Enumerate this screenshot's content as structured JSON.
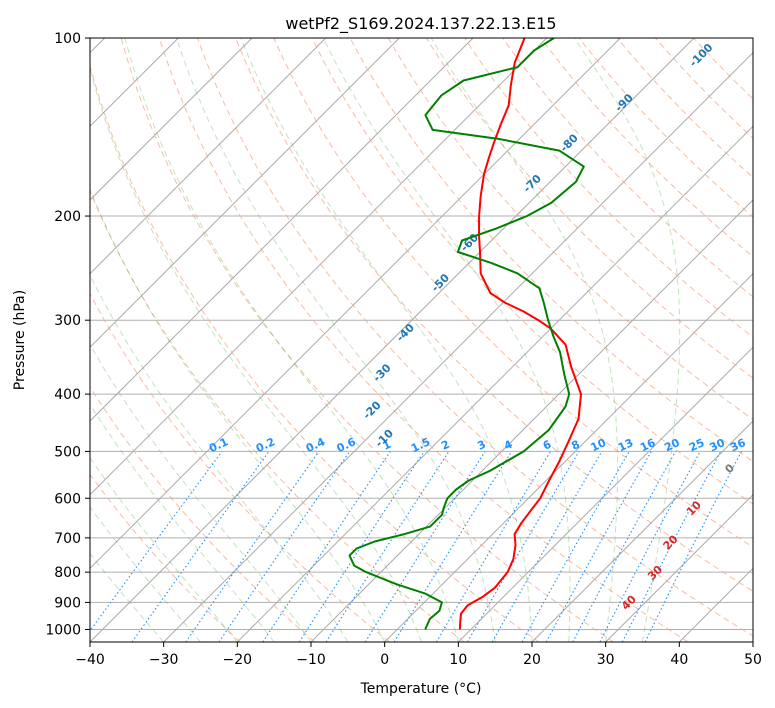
{
  "chart_data": {
    "type": "line",
    "title": "wetPf2_S169.2024.137.22.13.E15",
    "xlabel": "Temperature (°C)",
    "ylabel": "Pressure (hPa)",
    "xlim": [
      -40,
      50
    ],
    "ylim": [
      1050,
      100
    ],
    "y_scale": "log",
    "grid": true,
    "x_ticks": [
      -40,
      -30,
      -20,
      -10,
      0,
      10,
      20,
      30,
      40,
      50
    ],
    "y_ticks": [
      100,
      200,
      300,
      400,
      500,
      600,
      700,
      800,
      900,
      1000
    ],
    "skew_lines": {
      "color": "#aaaaaa",
      "temperatures": [
        -140,
        -130,
        -120,
        -110,
        -100,
        -90,
        -80,
        -70,
        -60,
        -50,
        -40,
        -30,
        -20,
        -10,
        0,
        10,
        20,
        30,
        40,
        50,
        60,
        70,
        80,
        90,
        100
      ]
    },
    "dry_adiabats": {
      "color": "#f4a582",
      "theta": [
        250,
        260,
        270,
        280,
        290,
        300,
        310,
        320,
        330,
        340,
        350,
        360,
        370,
        380,
        390,
        400,
        410,
        420,
        430,
        440,
        450
      ]
    },
    "moist_adiabats": {
      "color": "#4daf4a",
      "t_start": [
        -30,
        -25,
        -20,
        -15,
        -10,
        -5,
        0,
        5,
        10,
        15,
        20,
        25,
        30,
        35
      ]
    },
    "dry_adiabat_labels": {
      "color": "#d62728",
      "values": [
        "0",
        "10",
        "20",
        "30",
        "40"
      ]
    },
    "isohume_labels": {
      "color": "#1f77b4",
      "values": [
        "-100",
        "-90",
        "-80",
        "-70",
        "-60",
        "-50",
        "-40",
        "-30",
        "-20",
        "-10"
      ]
    },
    "mixing_ratio_labels": {
      "color": "#1e90ff",
      "values": [
        "0.1",
        "0.2",
        "0.4",
        "0.6",
        "1",
        "1.5",
        "2",
        "3",
        "4",
        "6",
        "8",
        "10",
        "13",
        "16",
        "20",
        "25",
        "30",
        "36"
      ]
    },
    "series": [
      {
        "color": "#ff0000",
        "points": [
          [
            1000,
            8.5
          ],
          [
            970,
            7.5
          ],
          [
            940,
            6.5
          ],
          [
            910,
            6.3
          ],
          [
            880,
            7.2
          ],
          [
            850,
            7.6
          ],
          [
            800,
            7.2
          ],
          [
            760,
            6.2
          ],
          [
            720,
            4.6
          ],
          [
            690,
            3.0
          ],
          [
            660,
            2.4
          ],
          [
            630,
            2.0
          ],
          [
            600,
            1.6
          ],
          [
            560,
            0.4
          ],
          [
            520,
            -0.8
          ],
          [
            480,
            -2.3
          ],
          [
            440,
            -4.0
          ],
          [
            400,
            -7.0
          ],
          [
            360,
            -12.0
          ],
          [
            330,
            -15.8
          ],
          [
            310,
            -20.0
          ],
          [
            300,
            -22.8
          ],
          [
            290,
            -26.0
          ],
          [
            280,
            -29.8
          ],
          [
            270,
            -33.0
          ],
          [
            250,
            -37.0
          ],
          [
            230,
            -40.0
          ],
          [
            215,
            -42.5
          ],
          [
            200,
            -45.0
          ],
          [
            185,
            -47.5
          ],
          [
            170,
            -50.0
          ],
          [
            160,
            -51.5
          ],
          [
            150,
            -53.0
          ],
          [
            140,
            -54.5
          ],
          [
            130,
            -56.0
          ],
          [
            120,
            -58.5
          ],
          [
            110,
            -61.0
          ],
          [
            100,
            -63.0
          ]
        ]
      },
      {
        "color": "#008000",
        "points": [
          [
            1000,
            3.8
          ],
          [
            960,
            3.0
          ],
          [
            930,
            3.2
          ],
          [
            900,
            2.4
          ],
          [
            870,
            -1.0
          ],
          [
            840,
            -6.0
          ],
          [
            800,
            -12.0
          ],
          [
            780,
            -14.5
          ],
          [
            750,
            -16.5
          ],
          [
            730,
            -16.5
          ],
          [
            710,
            -15.0
          ],
          [
            690,
            -12.0
          ],
          [
            670,
            -9.5
          ],
          [
            640,
            -9.5
          ],
          [
            620,
            -10.3
          ],
          [
            600,
            -11.0
          ],
          [
            580,
            -11.0
          ],
          [
            560,
            -10.5
          ],
          [
            540,
            -9.0
          ],
          [
            500,
            -7.0
          ],
          [
            460,
            -6.5
          ],
          [
            420,
            -7.4
          ],
          [
            400,
            -8.6
          ],
          [
            370,
            -12.0
          ],
          [
            340,
            -15.5
          ],
          [
            320,
            -18.5
          ],
          [
            300,
            -21.5
          ],
          [
            280,
            -24.5
          ],
          [
            265,
            -27.0
          ],
          [
            250,
            -32.0
          ],
          [
            240,
            -37.0
          ],
          [
            230,
            -43.0
          ],
          [
            220,
            -44.0
          ],
          [
            210,
            -41.0
          ],
          [
            200,
            -38.5
          ],
          [
            190,
            -37.0
          ],
          [
            175,
            -36.5
          ],
          [
            165,
            -37.5
          ],
          [
            155,
            -43.0
          ],
          [
            148,
            -53.0
          ],
          [
            143,
            -63.0
          ],
          [
            135,
            -66.0
          ],
          [
            125,
            -66.5
          ],
          [
            118,
            -65.5
          ],
          [
            112,
            -60.0
          ],
          [
            105,
            -60.0
          ],
          [
            100,
            -59.0
          ]
        ]
      }
    ]
  }
}
